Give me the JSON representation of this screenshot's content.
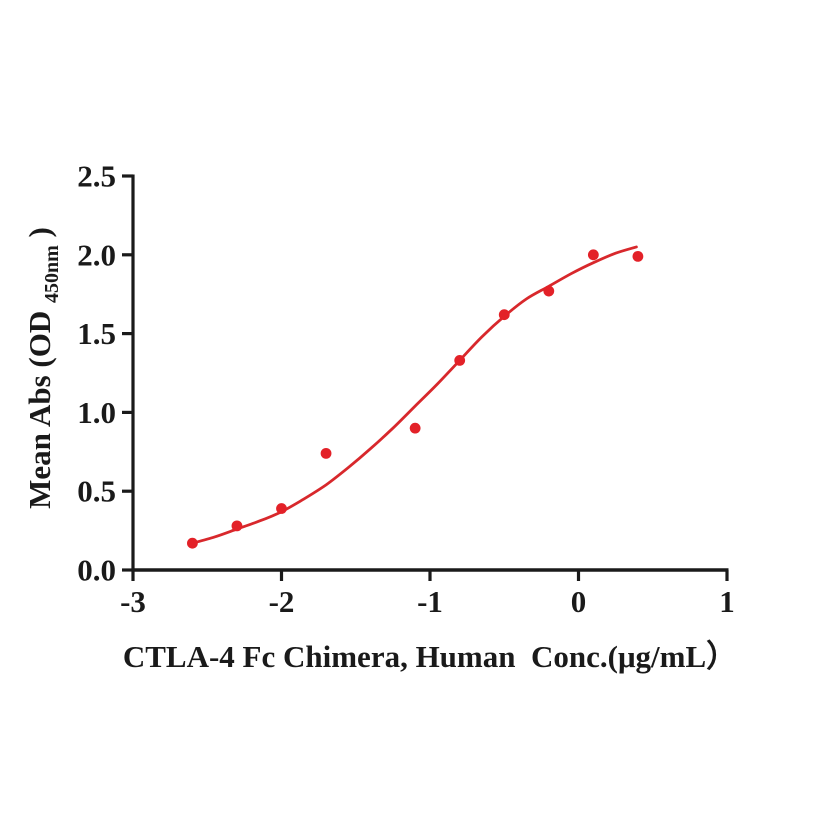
{
  "background": "#ffffff",
  "chart_data": {
    "type": "scatter",
    "title": "",
    "xlabel": "CTLA-4 Fc Chimera, Human  Conc.(μg/mL）",
    "ylabel": {
      "main": "Mean Abs (OD",
      "subscript": "450nm",
      "close": ")"
    },
    "xlim": [
      -3,
      1
    ],
    "ylim": [
      0,
      2.5
    ],
    "x_ticks": [
      -3,
      -2,
      -1,
      0,
      1
    ],
    "x_tick_labels": [
      "-3",
      "-2",
      "-1",
      "0",
      "1"
    ],
    "y_ticks": [
      0.0,
      0.5,
      1.0,
      1.5,
      2.0,
      2.5
    ],
    "y_tick_labels": [
      "0.0",
      "0.5",
      "1.0",
      "1.5",
      "2.0",
      "2.5"
    ],
    "grid": false,
    "legend": null,
    "points": [
      {
        "x": -2.6,
        "y": 0.17
      },
      {
        "x": -2.3,
        "y": 0.28
      },
      {
        "x": -2.0,
        "y": 0.39
      },
      {
        "x": -1.7,
        "y": 0.74
      },
      {
        "x": -1.1,
        "y": 0.9
      },
      {
        "x": -0.8,
        "y": 1.33
      },
      {
        "x": -0.5,
        "y": 1.62
      },
      {
        "x": -0.2,
        "y": 1.77
      },
      {
        "x": 0.1,
        "y": 2.0
      },
      {
        "x": 0.4,
        "y": 1.99
      }
    ],
    "fit_curve": {
      "x": [
        -2.62,
        -2.45,
        -2.3,
        -2.15,
        -2.0,
        -1.85,
        -1.7,
        -1.55,
        -1.4,
        -1.25,
        -1.1,
        -0.95,
        -0.8,
        -0.65,
        -0.5,
        -0.35,
        -0.2,
        -0.05,
        0.1,
        0.25,
        0.39
      ],
      "y": [
        0.165,
        0.21,
        0.26,
        0.31,
        0.37,
        0.45,
        0.54,
        0.65,
        0.77,
        0.9,
        1.04,
        1.18,
        1.33,
        1.48,
        1.61,
        1.72,
        1.8,
        1.88,
        1.95,
        2.01,
        2.05
      ]
    },
    "colors": {
      "point": "#e32128",
      "curve": "#d8282c",
      "axis": "#1a1a1a"
    }
  }
}
